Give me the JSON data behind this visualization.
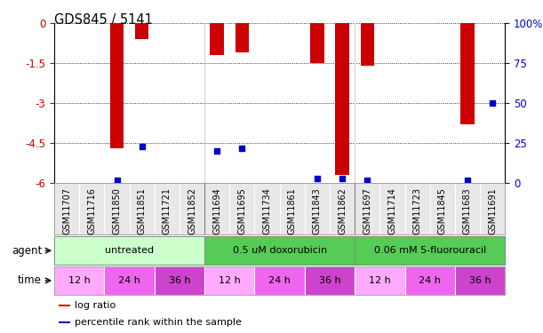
{
  "title": "GDS845 / 5141",
  "samples": [
    "GSM11707",
    "GSM11716",
    "GSM11850",
    "GSM11851",
    "GSM11721",
    "GSM11852",
    "GSM11694",
    "GSM11695",
    "GSM11734",
    "GSM11861",
    "GSM11843",
    "GSM11862",
    "GSM11697",
    "GSM11714",
    "GSM11723",
    "GSM11845",
    "GSM11683",
    "GSM11691"
  ],
  "log_ratio": [
    0,
    0,
    -4.7,
    -0.6,
    0,
    0,
    -1.2,
    -1.1,
    0,
    0,
    -1.5,
    -5.7,
    -1.6,
    0,
    0,
    0,
    -3.8,
    0.0
  ],
  "percentile_rank": [
    null,
    null,
    2,
    23,
    null,
    null,
    20,
    22,
    null,
    null,
    3,
    3,
    2,
    null,
    null,
    null,
    2,
    50
  ],
  "ylim_left": [
    -6,
    0
  ],
  "ylim_right": [
    0,
    100
  ],
  "yticks_left": [
    0,
    -1.5,
    -3,
    -4.5,
    -6
  ],
  "yticks_right": [
    0,
    25,
    50,
    75,
    100
  ],
  "bar_color": "#cc0000",
  "dot_color": "#0000cc",
  "tick_label_color_left": "#cc0000",
  "tick_label_color_right": "#0000cc",
  "agents": [
    {
      "label": "untreated",
      "start": 0,
      "end": 6,
      "color": "#ccffcc"
    },
    {
      "label": "0.5 uM doxorubicin",
      "start": 6,
      "end": 12,
      "color": "#55cc55"
    },
    {
      "label": "0.06 mM 5-fluorouracil",
      "start": 12,
      "end": 18,
      "color": "#55cc55"
    }
  ],
  "times": [
    {
      "label": "12 h",
      "start": 0,
      "end": 2,
      "color": "#ffaaff"
    },
    {
      "label": "24 h",
      "start": 2,
      "end": 4,
      "color": "#ee66ee"
    },
    {
      "label": "36 h",
      "start": 4,
      "end": 6,
      "color": "#cc44cc"
    },
    {
      "label": "12 h",
      "start": 6,
      "end": 8,
      "color": "#ffaaff"
    },
    {
      "label": "24 h",
      "start": 8,
      "end": 10,
      "color": "#ee66ee"
    },
    {
      "label": "36 h",
      "start": 10,
      "end": 12,
      "color": "#cc44cc"
    },
    {
      "label": "12 h",
      "start": 12,
      "end": 14,
      "color": "#ffaaff"
    },
    {
      "label": "24 h",
      "start": 14,
      "end": 16,
      "color": "#ee66ee"
    },
    {
      "label": "36 h",
      "start": 16,
      "end": 18,
      "color": "#cc44cc"
    }
  ],
  "legend_items": [
    {
      "label": "log ratio",
      "color": "#cc0000"
    },
    {
      "label": "percentile rank within the sample",
      "color": "#0000cc"
    }
  ],
  "n_samples": 18
}
